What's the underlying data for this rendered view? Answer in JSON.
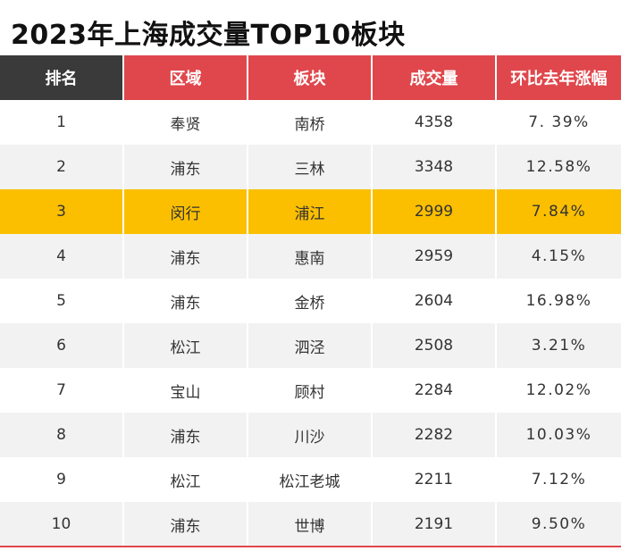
{
  "title": "2023年上海成交量TOP10板块",
  "headers": [
    "排名",
    "区域",
    "板块",
    "成交量",
    "环比去年涨幅"
  ],
  "rows": [
    {
      "rank": "1",
      "district": "奉贤",
      "block": "南桥",
      "volume": "4358",
      "growth": "7. 39%"
    },
    {
      "rank": "2",
      "district": "浦东",
      "block": "三林",
      "volume": "3348",
      "growth": "12.58%"
    },
    {
      "rank": "3",
      "district": "闵行",
      "block": "浦江",
      "volume": "2999",
      "growth": "7.84%"
    },
    {
      "rank": "4",
      "district": "浦东",
      "block": "惠南",
      "volume": "2959",
      "growth": "4.15%"
    },
    {
      "rank": "5",
      "district": "浦东",
      "block": "金桥",
      "volume": "2604",
      "growth": "16.98%"
    },
    {
      "rank": "6",
      "district": "松江",
      "block": "泗泾",
      "volume": "2508",
      "growth": "3.21%"
    },
    {
      "rank": "7",
      "district": "宝山",
      "block": "顾村",
      "volume": "2284",
      "growth": "12.02%"
    },
    {
      "rank": "8",
      "district": "浦东",
      "block": "川沙",
      "volume": "2282",
      "growth": "10.03%"
    },
    {
      "rank": "9",
      "district": "松江",
      "block": "松江老城",
      "volume": "2211",
      "growth": "7.12%"
    },
    {
      "rank": "10",
      "district": "浦东",
      "block": "世博",
      "volume": "2191",
      "growth": "9.50%"
    }
  ],
  "highlight_row_rank": "3",
  "colors": {
    "header_first": "#3a3a3a",
    "header_accent": "#e0474c",
    "highlight": "#fbbf00",
    "stripe": "#f2f2f2"
  }
}
